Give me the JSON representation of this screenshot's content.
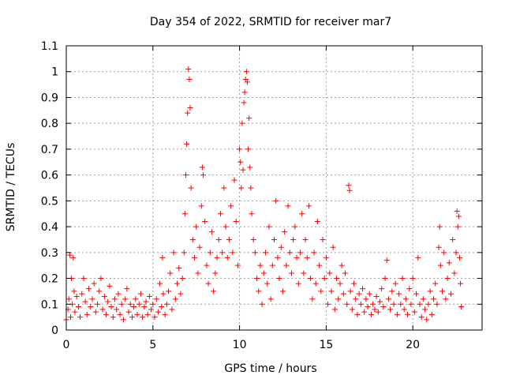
{
  "chart_data": {
    "type": "scatter",
    "title": "Day 354 of 2022, SRMTID for receiver mar7",
    "xlabel": "GPS time / hours",
    "ylabel": "SRMTID / TECUs",
    "xlim": [
      0,
      24
    ],
    "ylim": [
      0,
      1.1
    ],
    "xticks": [
      "0",
      "5",
      "10",
      "15",
      "20"
    ],
    "yticks": [
      "0",
      "0.1",
      "0.2",
      "0.3",
      "0.4",
      "0.5",
      "0.6",
      "0.7",
      "0.8",
      "0.9",
      "1",
      "1.1"
    ],
    "grid": true,
    "marker": "+",
    "color": "#ff0000",
    "series": [
      {
        "name": "SRMTID",
        "points": [
          [
            0.0,
            0.04
          ],
          [
            0.1,
            0.08
          ],
          [
            0.15,
            0.12
          ],
          [
            0.2,
            0.29
          ],
          [
            0.25,
            0.05
          ],
          [
            0.3,
            0.2
          ],
          [
            0.35,
            0.1
          ],
          [
            0.4,
            0.28
          ],
          [
            0.45,
            0.15
          ],
          [
            0.5,
            0.07
          ],
          [
            0.6,
            0.13
          ],
          [
            0.7,
            0.09
          ],
          [
            0.8,
            0.05
          ],
          [
            0.9,
            0.14
          ],
          [
            1.0,
            0.2
          ],
          [
            1.1,
            0.11
          ],
          [
            1.2,
            0.06
          ],
          [
            1.3,
            0.16
          ],
          [
            1.4,
            0.09
          ],
          [
            1.5,
            0.12
          ],
          [
            1.6,
            0.18
          ],
          [
            1.7,
            0.07
          ],
          [
            1.8,
            0.1
          ],
          [
            1.9,
            0.15
          ],
          [
            2.0,
            0.2
          ],
          [
            2.1,
            0.08
          ],
          [
            2.2,
            0.13
          ],
          [
            2.3,
            0.06
          ],
          [
            2.4,
            0.11
          ],
          [
            2.5,
            0.17
          ],
          [
            2.6,
            0.09
          ],
          [
            2.7,
            0.05
          ],
          [
            2.8,
            0.12
          ],
          [
            2.9,
            0.08
          ],
          [
            3.0,
            0.14
          ],
          [
            3.1,
            0.06
          ],
          [
            3.2,
            0.1
          ],
          [
            3.3,
            0.04
          ],
          [
            3.4,
            0.12
          ],
          [
            3.5,
            0.16
          ],
          [
            3.6,
            0.07
          ],
          [
            3.7,
            0.1
          ],
          [
            3.8,
            0.05
          ],
          [
            3.9,
            0.09
          ],
          [
            4.0,
            0.12
          ],
          [
            4.1,
            0.06
          ],
          [
            4.2,
            0.1
          ],
          [
            4.3,
            0.14
          ],
          [
            4.4,
            0.05
          ],
          [
            4.5,
            0.09
          ],
          [
            4.6,
            0.11
          ],
          [
            4.7,
            0.06
          ],
          [
            4.8,
            0.13
          ],
          [
            4.9,
            0.08
          ],
          [
            5.0,
            0.1
          ],
          [
            5.1,
            0.05
          ],
          [
            5.2,
            0.12
          ],
          [
            5.3,
            0.07
          ],
          [
            5.4,
            0.18
          ],
          [
            5.5,
            0.09
          ],
          [
            5.55,
            0.28
          ],
          [
            5.6,
            0.14
          ],
          [
            5.7,
            0.06
          ],
          [
            5.8,
            0.1
          ],
          [
            5.9,
            0.15
          ],
          [
            6.0,
            0.22
          ],
          [
            6.1,
            0.08
          ],
          [
            6.2,
            0.3
          ],
          [
            6.3,
            0.12
          ],
          [
            6.4,
            0.18
          ],
          [
            6.5,
            0.24
          ],
          [
            6.6,
            0.14
          ],
          [
            6.7,
            0.2
          ],
          [
            6.8,
            0.3
          ],
          [
            6.85,
            0.45
          ],
          [
            6.9,
            0.6
          ],
          [
            6.95,
            0.72
          ],
          [
            7.0,
            0.84
          ],
          [
            7.05,
            1.01
          ],
          [
            7.1,
            0.97
          ],
          [
            7.15,
            0.86
          ],
          [
            7.2,
            0.55
          ],
          [
            7.3,
            0.35
          ],
          [
            7.4,
            0.28
          ],
          [
            7.5,
            0.4
          ],
          [
            7.6,
            0.22
          ],
          [
            7.7,
            0.32
          ],
          [
            7.8,
            0.48
          ],
          [
            7.85,
            0.63
          ],
          [
            7.9,
            0.6
          ],
          [
            8.0,
            0.42
          ],
          [
            8.1,
            0.25
          ],
          [
            8.2,
            0.18
          ],
          [
            8.3,
            0.3
          ],
          [
            8.4,
            0.38
          ],
          [
            8.5,
            0.15
          ],
          [
            8.6,
            0.22
          ],
          [
            8.7,
            0.28
          ],
          [
            8.8,
            0.35
          ],
          [
            8.9,
            0.45
          ],
          [
            9.0,
            0.3
          ],
          [
            9.1,
            0.55
          ],
          [
            9.2,
            0.4
          ],
          [
            9.3,
            0.28
          ],
          [
            9.4,
            0.35
          ],
          [
            9.5,
            0.48
          ],
          [
            9.6,
            0.3
          ],
          [
            9.7,
            0.58
          ],
          [
            9.8,
            0.42
          ],
          [
            9.9,
            0.25
          ],
          [
            10.0,
            0.7
          ],
          [
            10.05,
            0.65
          ],
          [
            10.1,
            0.55
          ],
          [
            10.15,
            0.8
          ],
          [
            10.2,
            0.62
          ],
          [
            10.25,
            0.88
          ],
          [
            10.3,
            0.92
          ],
          [
            10.35,
            0.97
          ],
          [
            10.4,
            1.0
          ],
          [
            10.45,
            0.96
          ],
          [
            10.5,
            0.7
          ],
          [
            10.55,
            0.82
          ],
          [
            10.6,
            0.63
          ],
          [
            10.65,
            0.55
          ],
          [
            10.7,
            0.45
          ],
          [
            10.8,
            0.35
          ],
          [
            10.9,
            0.3
          ],
          [
            11.0,
            0.2
          ],
          [
            11.1,
            0.15
          ],
          [
            11.2,
            0.25
          ],
          [
            11.3,
            0.1
          ],
          [
            11.4,
            0.22
          ],
          [
            11.5,
            0.3
          ],
          [
            11.6,
            0.18
          ],
          [
            11.7,
            0.4
          ],
          [
            11.8,
            0.12
          ],
          [
            11.9,
            0.25
          ],
          [
            12.0,
            0.35
          ],
          [
            12.1,
            0.5
          ],
          [
            12.2,
            0.28
          ],
          [
            12.3,
            0.2
          ],
          [
            12.4,
            0.32
          ],
          [
            12.5,
            0.15
          ],
          [
            12.6,
            0.38
          ],
          [
            12.7,
            0.25
          ],
          [
            12.8,
            0.48
          ],
          [
            12.9,
            0.3
          ],
          [
            13.0,
            0.22
          ],
          [
            13.1,
            0.35
          ],
          [
            13.2,
            0.4
          ],
          [
            13.3,
            0.28
          ],
          [
            13.4,
            0.18
          ],
          [
            13.5,
            0.3
          ],
          [
            13.6,
            0.45
          ],
          [
            13.7,
            0.22
          ],
          [
            13.8,
            0.35
          ],
          [
            13.9,
            0.28
          ],
          [
            14.0,
            0.48
          ],
          [
            14.1,
            0.2
          ],
          [
            14.2,
            0.12
          ],
          [
            14.3,
            0.3
          ],
          [
            14.4,
            0.18
          ],
          [
            14.5,
            0.42
          ],
          [
            14.6,
            0.25
          ],
          [
            14.7,
            0.15
          ],
          [
            14.8,
            0.35
          ],
          [
            14.9,
            0.2
          ],
          [
            15.0,
            0.28
          ],
          [
            15.1,
            0.1
          ],
          [
            15.2,
            0.22
          ],
          [
            15.3,
            0.15
          ],
          [
            15.4,
            0.32
          ],
          [
            15.5,
            0.08
          ],
          [
            15.6,
            0.2
          ],
          [
            15.7,
            0.12
          ],
          [
            15.8,
            0.18
          ],
          [
            15.9,
            0.25
          ],
          [
            16.0,
            0.14
          ],
          [
            16.1,
            0.22
          ],
          [
            16.2,
            0.1
          ],
          [
            16.3,
            0.56
          ],
          [
            16.35,
            0.54
          ],
          [
            16.4,
            0.15
          ],
          [
            16.5,
            0.08
          ],
          [
            16.6,
            0.18
          ],
          [
            16.7,
            0.12
          ],
          [
            16.8,
            0.06
          ],
          [
            16.9,
            0.14
          ],
          [
            17.0,
            0.1
          ],
          [
            17.1,
            0.16
          ],
          [
            17.2,
            0.07
          ],
          [
            17.3,
            0.12
          ],
          [
            17.4,
            0.09
          ],
          [
            17.5,
            0.14
          ],
          [
            17.6,
            0.06
          ],
          [
            17.7,
            0.1
          ],
          [
            17.8,
            0.08
          ],
          [
            17.9,
            0.13
          ],
          [
            18.0,
            0.07
          ],
          [
            18.1,
            0.11
          ],
          [
            18.2,
            0.16
          ],
          [
            18.3,
            0.09
          ],
          [
            18.4,
            0.2
          ],
          [
            18.5,
            0.27
          ],
          [
            18.6,
            0.12
          ],
          [
            18.7,
            0.08
          ],
          [
            18.8,
            0.15
          ],
          [
            18.9,
            0.1
          ],
          [
            19.0,
            0.18
          ],
          [
            19.1,
            0.06
          ],
          [
            19.2,
            0.14
          ],
          [
            19.3,
            0.1
          ],
          [
            19.4,
            0.2
          ],
          [
            19.5,
            0.08
          ],
          [
            19.6,
            0.12
          ],
          [
            19.7,
            0.06
          ],
          [
            19.8,
            0.16
          ],
          [
            19.9,
            0.1
          ],
          [
            20.0,
            0.2
          ],
          [
            20.1,
            0.07
          ],
          [
            20.2,
            0.14
          ],
          [
            20.3,
            0.28
          ],
          [
            20.4,
            0.1
          ],
          [
            20.5,
            0.05
          ],
          [
            20.6,
            0.12
          ],
          [
            20.7,
            0.08
          ],
          [
            20.8,
            0.04
          ],
          [
            20.9,
            0.1
          ],
          [
            21.0,
            0.15
          ],
          [
            21.1,
            0.06
          ],
          [
            21.2,
            0.12
          ],
          [
            21.3,
            0.18
          ],
          [
            21.4,
            0.1
          ],
          [
            21.5,
            0.32
          ],
          [
            21.55,
            0.4
          ],
          [
            21.6,
            0.25
          ],
          [
            21.7,
            0.15
          ],
          [
            21.8,
            0.3
          ],
          [
            21.9,
            0.12
          ],
          [
            22.0,
            0.2
          ],
          [
            22.1,
            0.26
          ],
          [
            22.2,
            0.14
          ],
          [
            22.3,
            0.35
          ],
          [
            22.4,
            0.22
          ],
          [
            22.5,
            0.3
          ],
          [
            22.55,
            0.46
          ],
          [
            22.6,
            0.4
          ],
          [
            22.65,
            0.44
          ],
          [
            22.7,
            0.28
          ],
          [
            22.75,
            0.18
          ],
          [
            22.8,
            0.09
          ]
        ]
      }
    ]
  }
}
